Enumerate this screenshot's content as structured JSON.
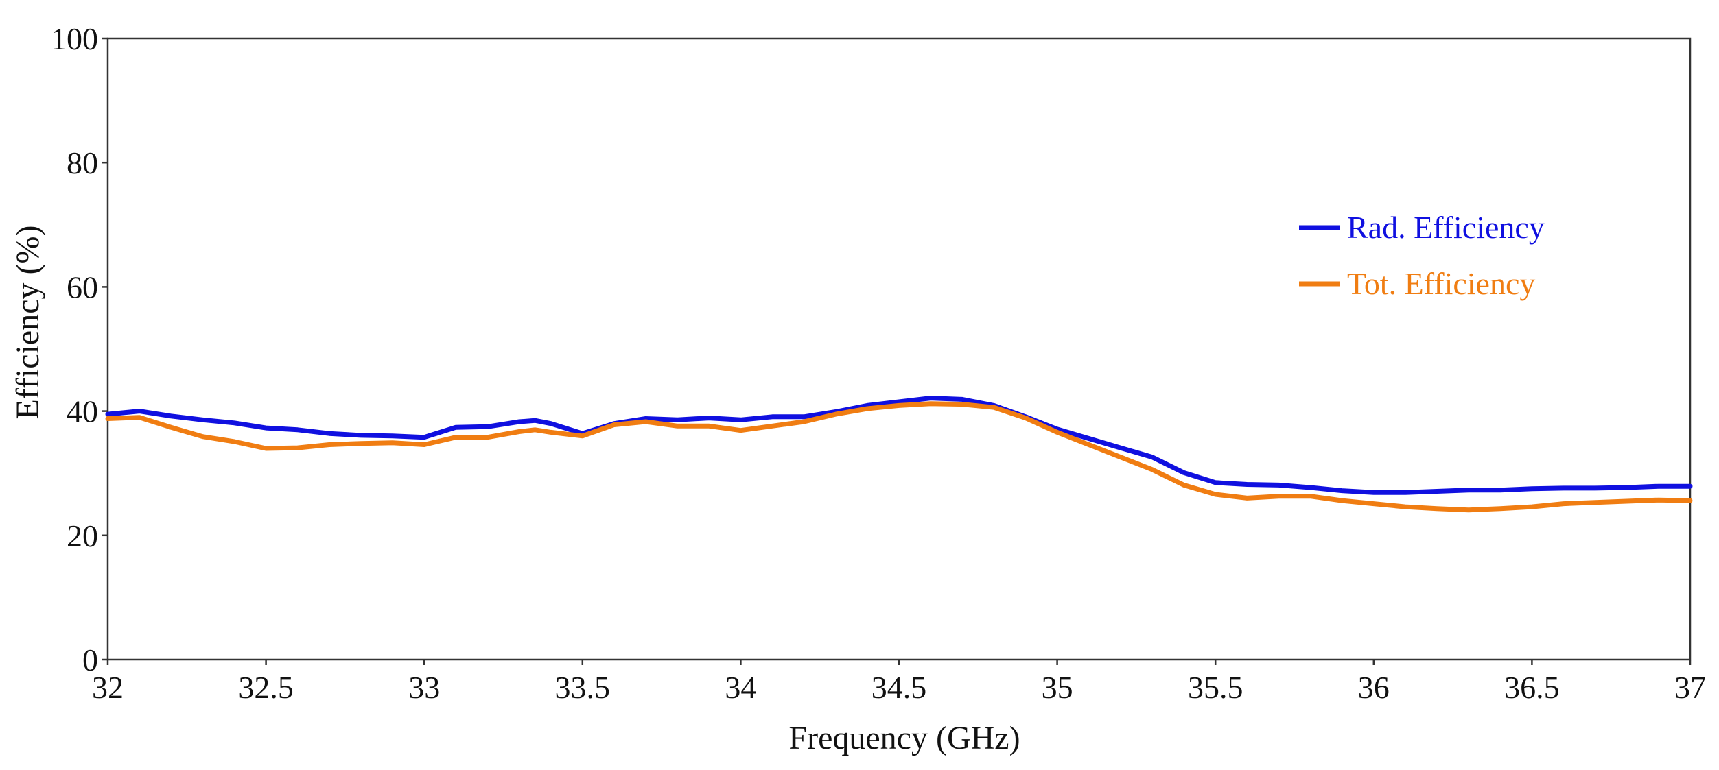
{
  "chart_data": {
    "type": "line",
    "title": "",
    "xlabel": "Frequency (GHz)",
    "ylabel": "Efficiency (%)",
    "xlim": [
      32,
      37
    ],
    "ylim": [
      0,
      100
    ],
    "x_ticks": [
      "32",
      "32.5",
      "33",
      "33.5",
      "34",
      "34.5",
      "35",
      "35.5",
      "36",
      "36.5",
      "37"
    ],
    "y_ticks": [
      "0",
      "20",
      "40",
      "60",
      "80",
      "100"
    ],
    "grid": true,
    "legend_position": "right",
    "series": [
      {
        "name": "Rad. Efficiency",
        "color": "#1010e0",
        "points": [
          [
            32.0,
            39.5
          ],
          [
            32.1,
            40.0
          ],
          [
            32.2,
            39.2
          ],
          [
            32.3,
            38.6
          ],
          [
            32.4,
            38.1
          ],
          [
            32.5,
            37.3
          ],
          [
            32.6,
            37.0
          ],
          [
            32.7,
            36.4
          ],
          [
            32.8,
            36.1
          ],
          [
            32.9,
            36.0
          ],
          [
            33.0,
            35.8
          ],
          [
            33.1,
            37.4
          ],
          [
            33.2,
            37.5
          ],
          [
            33.3,
            38.3
          ],
          [
            33.35,
            38.5
          ],
          [
            33.4,
            38.0
          ],
          [
            33.5,
            36.4
          ],
          [
            33.6,
            38.0
          ],
          [
            33.7,
            38.8
          ],
          [
            33.8,
            38.6
          ],
          [
            33.9,
            38.9
          ],
          [
            34.0,
            38.6
          ],
          [
            34.1,
            39.1
          ],
          [
            34.2,
            39.1
          ],
          [
            34.3,
            39.9
          ],
          [
            34.4,
            40.9
          ],
          [
            34.5,
            41.5
          ],
          [
            34.6,
            42.1
          ],
          [
            34.7,
            41.9
          ],
          [
            34.8,
            40.9
          ],
          [
            34.9,
            39.1
          ],
          [
            35.0,
            37.1
          ],
          [
            35.1,
            35.6
          ],
          [
            35.2,
            34.1
          ],
          [
            35.3,
            32.6
          ],
          [
            35.4,
            30.1
          ],
          [
            35.5,
            28.5
          ],
          [
            35.6,
            28.2
          ],
          [
            35.7,
            28.1
          ],
          [
            35.8,
            27.7
          ],
          [
            35.9,
            27.2
          ],
          [
            36.0,
            26.9
          ],
          [
            36.1,
            26.9
          ],
          [
            36.2,
            27.1
          ],
          [
            36.3,
            27.3
          ],
          [
            36.4,
            27.3
          ],
          [
            36.5,
            27.5
          ],
          [
            36.6,
            27.6
          ],
          [
            36.7,
            27.6
          ],
          [
            36.8,
            27.7
          ],
          [
            36.9,
            27.9
          ],
          [
            37.0,
            27.9
          ]
        ]
      },
      {
        "name": "Tot. Efficiency",
        "color": "#f07d12",
        "points": [
          [
            32.0,
            38.8
          ],
          [
            32.1,
            39.0
          ],
          [
            32.2,
            37.4
          ],
          [
            32.3,
            35.9
          ],
          [
            32.4,
            35.1
          ],
          [
            32.5,
            34.0
          ],
          [
            32.6,
            34.1
          ],
          [
            32.7,
            34.6
          ],
          [
            32.8,
            34.8
          ],
          [
            32.9,
            34.9
          ],
          [
            33.0,
            34.6
          ],
          [
            33.1,
            35.8
          ],
          [
            33.2,
            35.8
          ],
          [
            33.3,
            36.7
          ],
          [
            33.35,
            37.0
          ],
          [
            33.4,
            36.6
          ],
          [
            33.5,
            36.0
          ],
          [
            33.6,
            37.8
          ],
          [
            33.7,
            38.3
          ],
          [
            33.8,
            37.6
          ],
          [
            33.9,
            37.6
          ],
          [
            34.0,
            36.9
          ],
          [
            34.1,
            37.6
          ],
          [
            34.2,
            38.3
          ],
          [
            34.3,
            39.5
          ],
          [
            34.4,
            40.4
          ],
          [
            34.5,
            40.9
          ],
          [
            34.6,
            41.2
          ],
          [
            34.7,
            41.1
          ],
          [
            34.8,
            40.6
          ],
          [
            34.9,
            38.9
          ],
          [
            35.0,
            36.6
          ],
          [
            35.1,
            34.6
          ],
          [
            35.2,
            32.6
          ],
          [
            35.3,
            30.6
          ],
          [
            35.4,
            28.1
          ],
          [
            35.5,
            26.6
          ],
          [
            35.6,
            26.0
          ],
          [
            35.7,
            26.3
          ],
          [
            35.8,
            26.3
          ],
          [
            35.9,
            25.6
          ],
          [
            36.0,
            25.1
          ],
          [
            36.1,
            24.6
          ],
          [
            36.2,
            24.3
          ],
          [
            36.3,
            24.1
          ],
          [
            36.4,
            24.3
          ],
          [
            36.5,
            24.6
          ],
          [
            36.6,
            25.1
          ],
          [
            36.7,
            25.3
          ],
          [
            36.8,
            25.5
          ],
          [
            36.9,
            25.7
          ],
          [
            37.0,
            25.6
          ]
        ]
      }
    ]
  }
}
